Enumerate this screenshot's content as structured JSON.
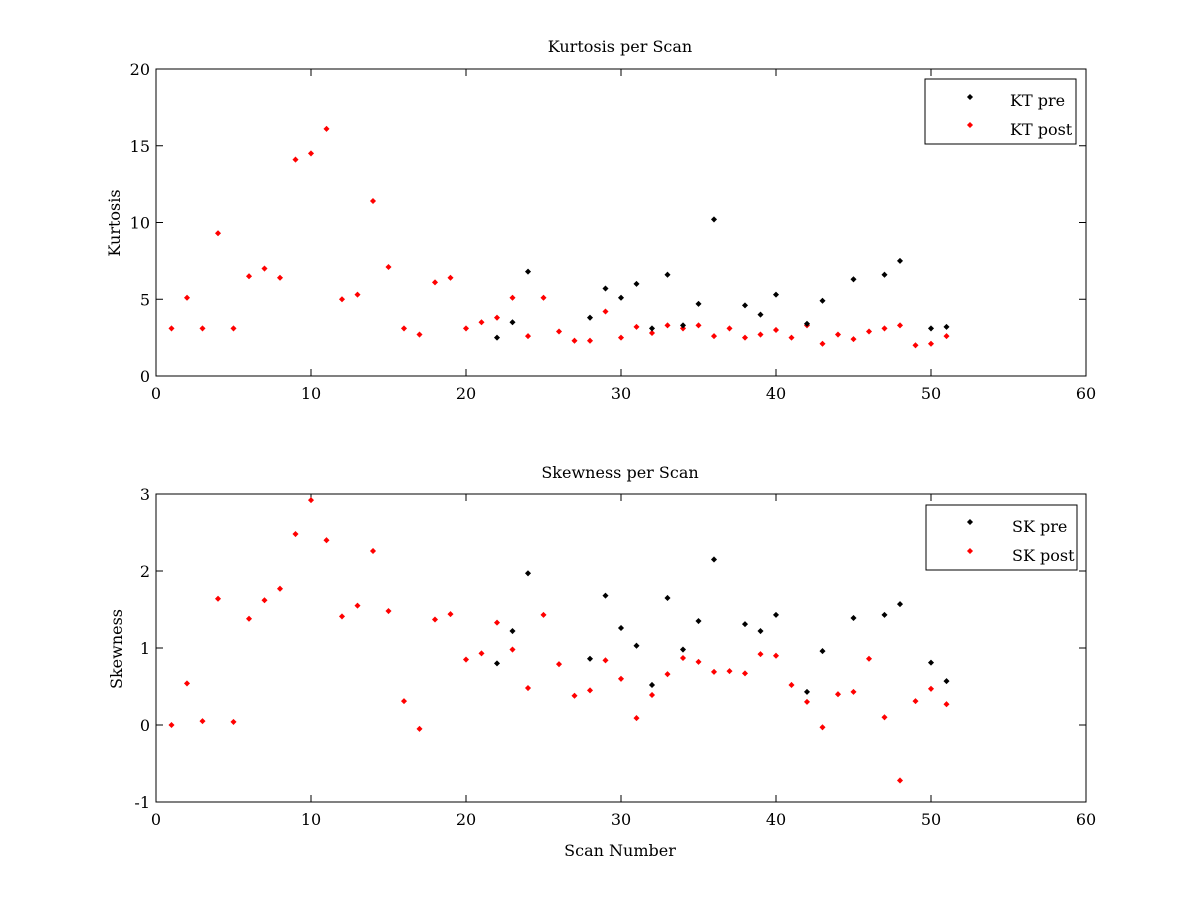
{
  "chart_data": [
    {
      "type": "scatter",
      "title": "Kurtosis per Scan",
      "xlabel": "",
      "ylabel": "Kurtosis",
      "xlim": [
        0,
        60
      ],
      "ylim": [
        0,
        20
      ],
      "xticks": [
        0,
        10,
        20,
        30,
        40,
        50,
        60
      ],
      "yticks": [
        0,
        5,
        10,
        15,
        20
      ],
      "grid": false,
      "legend_position": "top-right",
      "series": [
        {
          "name": "KT pre",
          "color": "#000000",
          "x": [
            22,
            23,
            24,
            28,
            29,
            30,
            31,
            32,
            33,
            34,
            35,
            36,
            38,
            39,
            40,
            42,
            43,
            45,
            47,
            48,
            50,
            51
          ],
          "y": [
            2.5,
            3.5,
            6.8,
            3.8,
            5.7,
            5.1,
            6.0,
            3.1,
            6.6,
            3.3,
            4.7,
            10.2,
            4.6,
            4.0,
            5.3,
            3.4,
            4.9,
            6.3,
            6.6,
            7.5,
            3.1,
            3.2
          ]
        },
        {
          "name": "KT post",
          "color": "#ff0000",
          "x": [
            1,
            2,
            3,
            4,
            5,
            6,
            7,
            8,
            9,
            10,
            11,
            12,
            13,
            14,
            15,
            16,
            17,
            18,
            19,
            20,
            21,
            22,
            23,
            24,
            25,
            26,
            27,
            28,
            29,
            30,
            31,
            32,
            33,
            34,
            35,
            36,
            37,
            38,
            39,
            40,
            41,
            42,
            43,
            44,
            45,
            46,
            47,
            48,
            49,
            50,
            51
          ],
          "y": [
            3.1,
            5.1,
            3.1,
            9.3,
            3.1,
            6.5,
            7.0,
            6.4,
            14.1,
            14.5,
            16.1,
            5.0,
            5.3,
            11.4,
            7.1,
            3.1,
            2.7,
            6.1,
            6.4,
            3.1,
            3.5,
            3.8,
            5.1,
            2.6,
            5.1,
            2.9,
            2.3,
            2.3,
            4.2,
            2.5,
            3.2,
            2.8,
            3.3,
            3.1,
            3.3,
            2.6,
            3.1,
            2.5,
            2.7,
            3.0,
            2.5,
            3.3,
            2.1,
            2.7,
            2.4,
            2.9,
            3.1,
            3.3,
            2.0,
            2.1,
            2.6
          ]
        }
      ]
    },
    {
      "type": "scatter",
      "title": "Skewness per Scan",
      "xlabel": "Scan Number",
      "ylabel": "Skewness",
      "xlim": [
        0,
        60
      ],
      "ylim": [
        -1,
        3
      ],
      "xticks": [
        0,
        10,
        20,
        30,
        40,
        50,
        60
      ],
      "yticks": [
        -1,
        0,
        1,
        2,
        3
      ],
      "grid": false,
      "legend_position": "top-right",
      "series": [
        {
          "name": "SK pre",
          "color": "#000000",
          "x": [
            22,
            23,
            24,
            28,
            29,
            30,
            31,
            32,
            33,
            34,
            35,
            36,
            38,
            39,
            40,
            42,
            43,
            45,
            47,
            48,
            50,
            51
          ],
          "y": [
            0.8,
            1.22,
            1.97,
            0.86,
            1.68,
            1.26,
            1.03,
            0.52,
            1.65,
            0.98,
            1.35,
            2.15,
            1.31,
            1.22,
            1.43,
            0.43,
            0.96,
            1.39,
            1.43,
            1.57,
            0.81,
            0.57
          ]
        },
        {
          "name": "SK post",
          "color": "#ff0000",
          "x": [
            1,
            2,
            3,
            4,
            5,
            6,
            7,
            8,
            9,
            10,
            11,
            12,
            13,
            14,
            15,
            16,
            17,
            18,
            19,
            20,
            21,
            22,
            23,
            24,
            25,
            26,
            27,
            28,
            29,
            30,
            31,
            32,
            33,
            34,
            35,
            36,
            37,
            38,
            39,
            40,
            41,
            42,
            43,
            44,
            45,
            46,
            47,
            48,
            49,
            50,
            51
          ],
          "y": [
            0.0,
            0.54,
            0.05,
            1.64,
            0.04,
            1.38,
            1.62,
            1.77,
            2.48,
            2.92,
            2.4,
            1.41,
            1.55,
            2.26,
            1.48,
            0.31,
            -0.05,
            1.37,
            1.44,
            0.85,
            0.93,
            1.33,
            0.98,
            0.48,
            1.43,
            0.79,
            0.38,
            0.45,
            0.84,
            0.6,
            0.09,
            0.39,
            0.66,
            0.87,
            0.82,
            0.69,
            0.7,
            0.67,
            0.92,
            0.9,
            0.52,
            0.3,
            -0.03,
            0.4,
            0.43,
            0.86,
            0.1,
            -0.72,
            0.31,
            0.47,
            0.27
          ]
        }
      ]
    }
  ]
}
